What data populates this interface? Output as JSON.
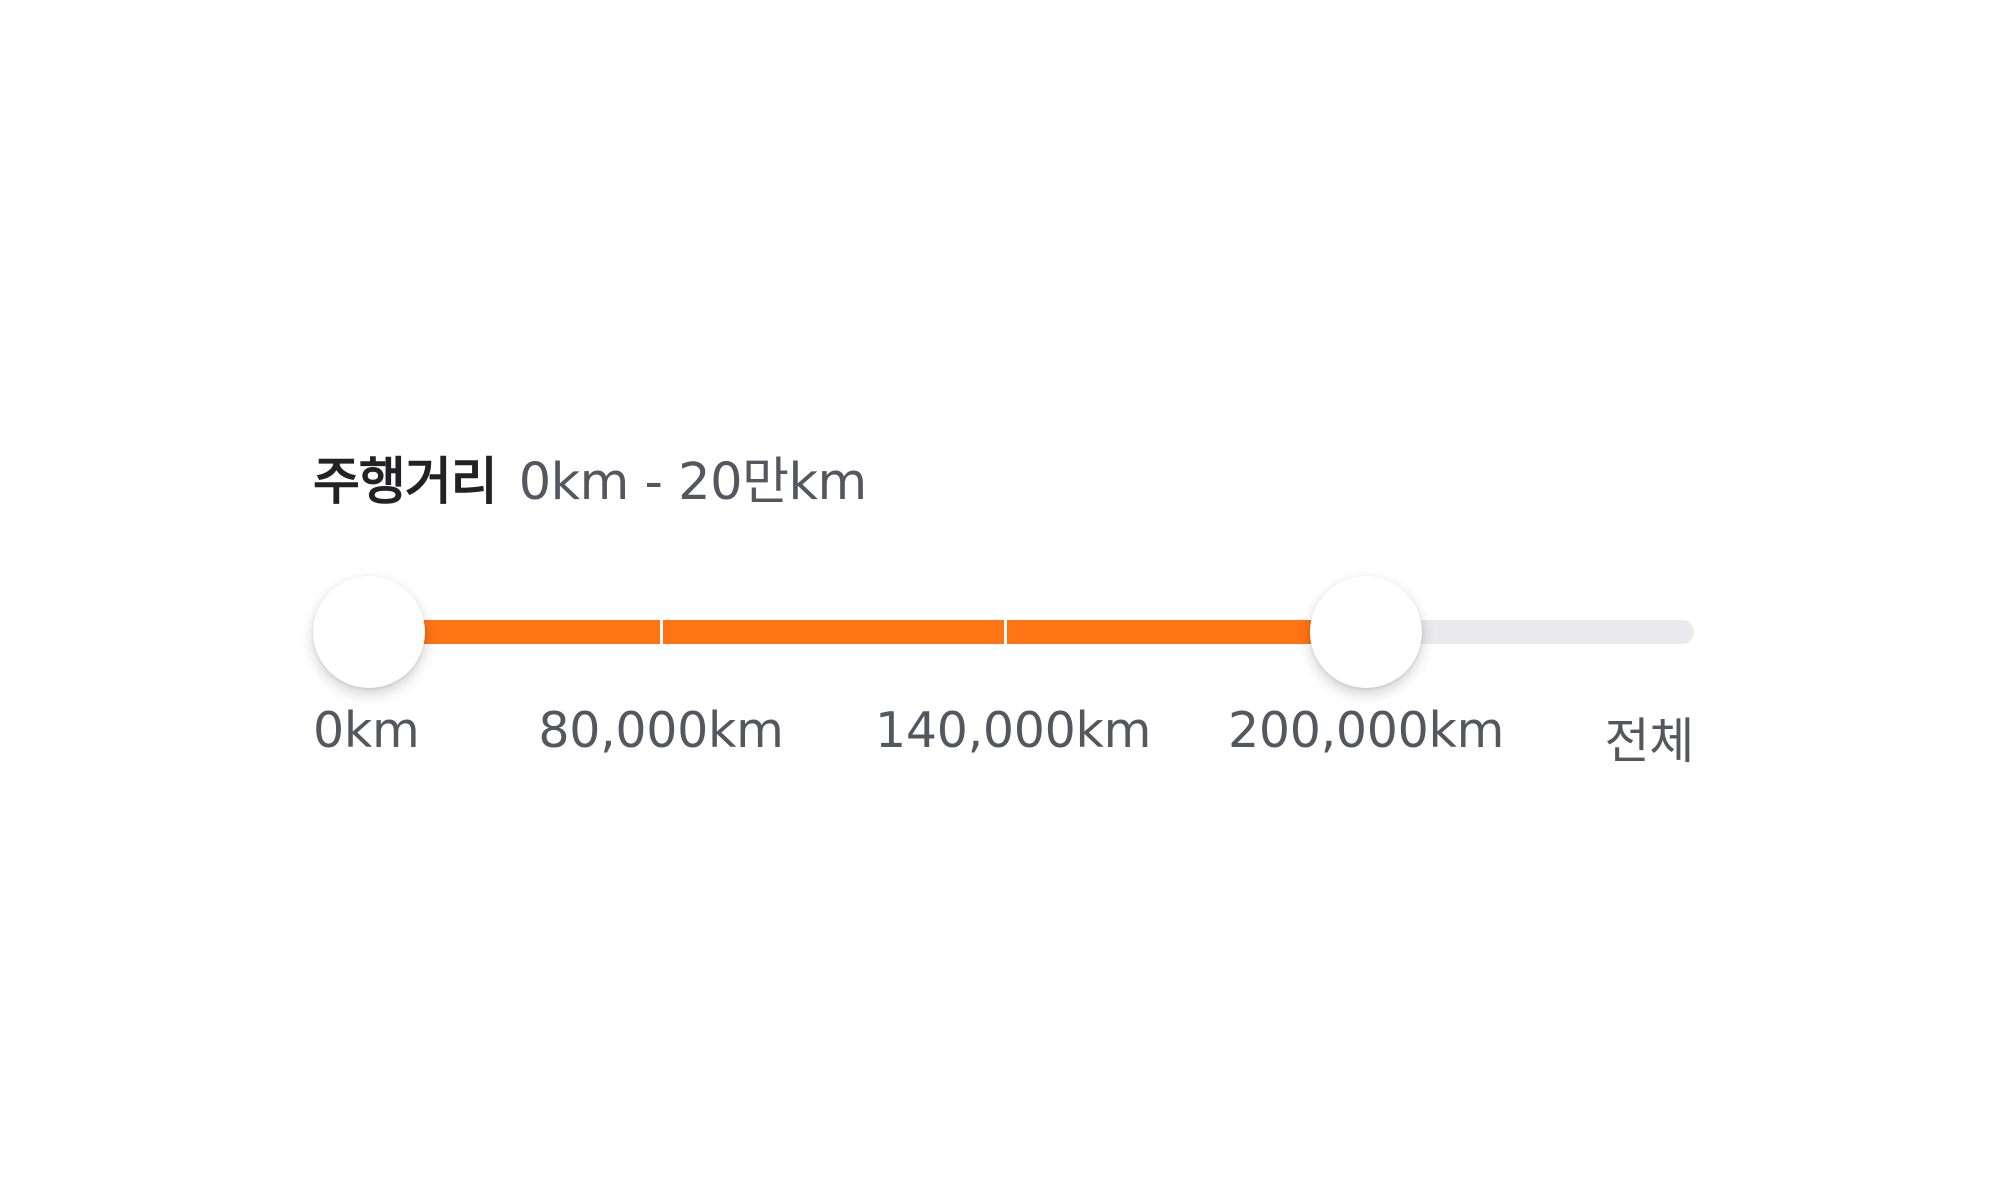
{
  "filter": {
    "title": "주행거리",
    "range_text": "0km - 20만km"
  },
  "slider": {
    "stops": [
      "0km",
      "80,000km",
      "140,000km",
      "200,000km",
      "전체"
    ],
    "selected_min_index": 0,
    "selected_max_index": 3,
    "min_value": "0km",
    "max_value": "200,000km"
  },
  "colors": {
    "accent": "#ff7415",
    "track": "#e9e9ee",
    "title_text": "#222226",
    "secondary_text": "#55565e",
    "thumb": "#ffffff"
  }
}
